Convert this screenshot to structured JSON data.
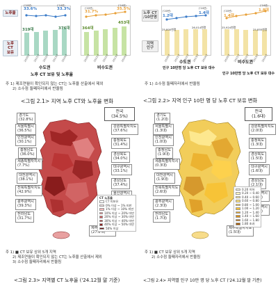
{
  "fig1": {
    "row_label_top": "노후율",
    "row_label_bottom": "노후 CT\n보유",
    "region_left": "수도권",
    "region_right": "비수도권",
    "x_label": "노후 CT 보유 및 노후율",
    "rates_left": [
      "33.6%",
      "33.3%"
    ],
    "rates_right": [
      "31.7%",
      "35.5%"
    ],
    "rate_year_tags": [
      "('20년)",
      "('24년)",
      "('20년)",
      "('24년)"
    ],
    "counts_left": [
      "319대",
      "376대"
    ],
    "counts_right": [
      "364대",
      "453대"
    ],
    "years": [
      "2020년",
      "2021년",
      "2022년",
      "2023년",
      "2024년"
    ],
    "caption": "<그림 2.1> 지역 노후 CT와 노후율 변화"
  },
  "fig2": {
    "row_label_top": "노후 CT\n/10만명",
    "row_label_bottom": "지역\n인구",
    "region_left": "수도권",
    "region_right": "비수도권",
    "x_label_left": "인구 10만명 당 노후 CT 보유 대수",
    "x_label_right": "인구 10만명 당 노후 CT 보유 대수",
    "rates_left": [
      "1.2대",
      "1.4대"
    ],
    "rates_right": [
      "1.4대",
      "1.8대"
    ],
    "rate_year_tags": [
      "('20년)",
      "('24년)",
      "('20년)",
      "('24년)"
    ],
    "pop_left": [
      "25,800천명",
      "26,014천명"
    ],
    "pop_right": [
      "25,924천명",
      "25,855천명"
    ],
    "years": [
      "2020년",
      "2021년",
      "2022년",
      "2023년",
      "2024년"
    ],
    "caption": "<그림 2.2> 지역 인구 10만 명 당 노후 CT 보유 변화"
  },
  "notes_top": {
    "left": [
      "주 1) 제조연월이 확인되지 않는 CT는 노후율 산출에서 제외",
      "2) 소수점 둘째자리에서 반올림"
    ],
    "right": [
      "주 1) 소수점 둘째자리에서 반올림"
    ]
  },
  "map1": {
    "national_label": "전국",
    "national_value": "(34.5%)",
    "provinces": [
      {
        "name": "경기도",
        "value": "(32.8%)"
      },
      {
        "name": "서울특별시",
        "value": "(36.5%)"
      },
      {
        "name": "인천광역시",
        "value": "(30.1%)"
      },
      {
        "name": "충청북도",
        "value": "(31.4%)"
      },
      {
        "name": "충청남도",
        "value": "(36.0%)"
      },
      {
        "name": "세종특별자치시",
        "value": "(7.7%)"
      },
      {
        "name": "대전광역시",
        "value": "(38.1%)"
      },
      {
        "name": "전북특별자치도",
        "value": "(42.9%)"
      },
      {
        "name": "광주광역시",
        "value": "(39.3%)"
      },
      {
        "name": "전라남도",
        "value": "(31.7%)"
      },
      {
        "name": "강원특별자치도",
        "value": "(37.6%)"
      },
      {
        "name": "경상북도",
        "value": "(34.0%)"
      },
      {
        "name": "대구광역시",
        "value": "(33.1%)"
      },
      {
        "name": "경상남도",
        "value": "(37.4%)"
      },
      {
        "name": "울산광역시",
        "value": "(26.8%)"
      },
      {
        "name": "부산광역시",
        "value": "(41.7%)"
      },
      {
        "name": "제주특별자치도",
        "value": "(27.8%)"
      }
    ],
    "legend_title": "CT 노후율",
    "legend": [
      "CT 미보유",
      "0% 이상 ~ 1% 미만",
      "1% 이상 ~ 10% 미만",
      "10% 이상 ~ 20% 미만",
      "20% 이상 ~ 30% 미만",
      "30% 이상 ~ 40% 미만",
      "40% 이상 ~ 50% 미만",
      "50% 이상"
    ],
    "legend_colors": [
      "#ffffff",
      "#fbe3e3",
      "#f3b9b9",
      "#e48a8a",
      "#cc5a5a",
      "#b13434",
      "#8e1c1c",
      "#6a0e0e"
    ],
    "notes": [
      "주 1) ■ CT 보유 상위 5개 지역",
      "2) 제조연월이 확인되지 않는 CT는 노후율 산출에서 제외",
      "3) 소수점 둘째자리에서 반올림"
    ],
    "caption": "<그림 2.3> 지역별 CT 노후율 ('24.12월 말 기준)"
  },
  "map2": {
    "national_label": "전국",
    "national_value": "(1.6대)",
    "provinces": [
      {
        "name": "경기도",
        "value": "(1.2대)"
      },
      {
        "name": "서울특별시",
        "value": "(1.3대)"
      },
      {
        "name": "인천광역시",
        "value": "(1.0대)"
      },
      {
        "name": "충청북도",
        "value": "(1.3대)"
      },
      {
        "name": "충청남도",
        "value": "(1.9대)"
      },
      {
        "name": "세종특별자치시",
        "value": "(0.3대)"
      },
      {
        "name": "대전광역시",
        "value": "(1.9대)"
      },
      {
        "name": "전북특별자치도",
        "value": "(2.6대)"
      },
      {
        "name": "광주광역시",
        "value": "(2.3대)"
      },
      {
        "name": "전라남도",
        "value": "(1.7대)"
      },
      {
        "name": "강원특별자치도",
        "value": "(2.0대)"
      },
      {
        "name": "경상북도",
        "value": "(1.5대)"
      },
      {
        "name": "대구광역시",
        "value": "(1.6대)"
      },
      {
        "name": "경상남도",
        "value": "(2.1대)"
      },
      {
        "name": "울산광역시",
        "value": "(1.0대)"
      },
      {
        "name": "부산광역시",
        "value": "(2.3대)"
      },
      {
        "name": "제주특별자치도",
        "value": "(1.5대)"
      }
    ],
    "legend": [
      "0.20 이하",
      "0.20 ~ 0.40",
      "0.40 ~ 0.60",
      "0.60 ~ 0.80",
      "0.80 ~ 1.00",
      "1.00 ~ 1.20",
      "1.20 ~ 1.40",
      "1.40 ~ 1.60",
      "1.60 ~ 1.80",
      "1.80 초과"
    ],
    "legend_colors": [
      "#fffde6",
      "#fff6c2",
      "#ffec99",
      "#ffe070",
      "#ffd24a",
      "#f7c02e",
      "#eaa81f",
      "#d98f16",
      "#c3760f",
      "#a65d08"
    ],
    "notes": [
      "주 1) ■ CT 보유 상위 5개 지역",
      "2) 소수점 둘째자리에서 반올림"
    ],
    "caption": "<그림 2.4> 지역별 인구 10만 명 당 노후 CT ('24.12월 말 기준)"
  }
}
